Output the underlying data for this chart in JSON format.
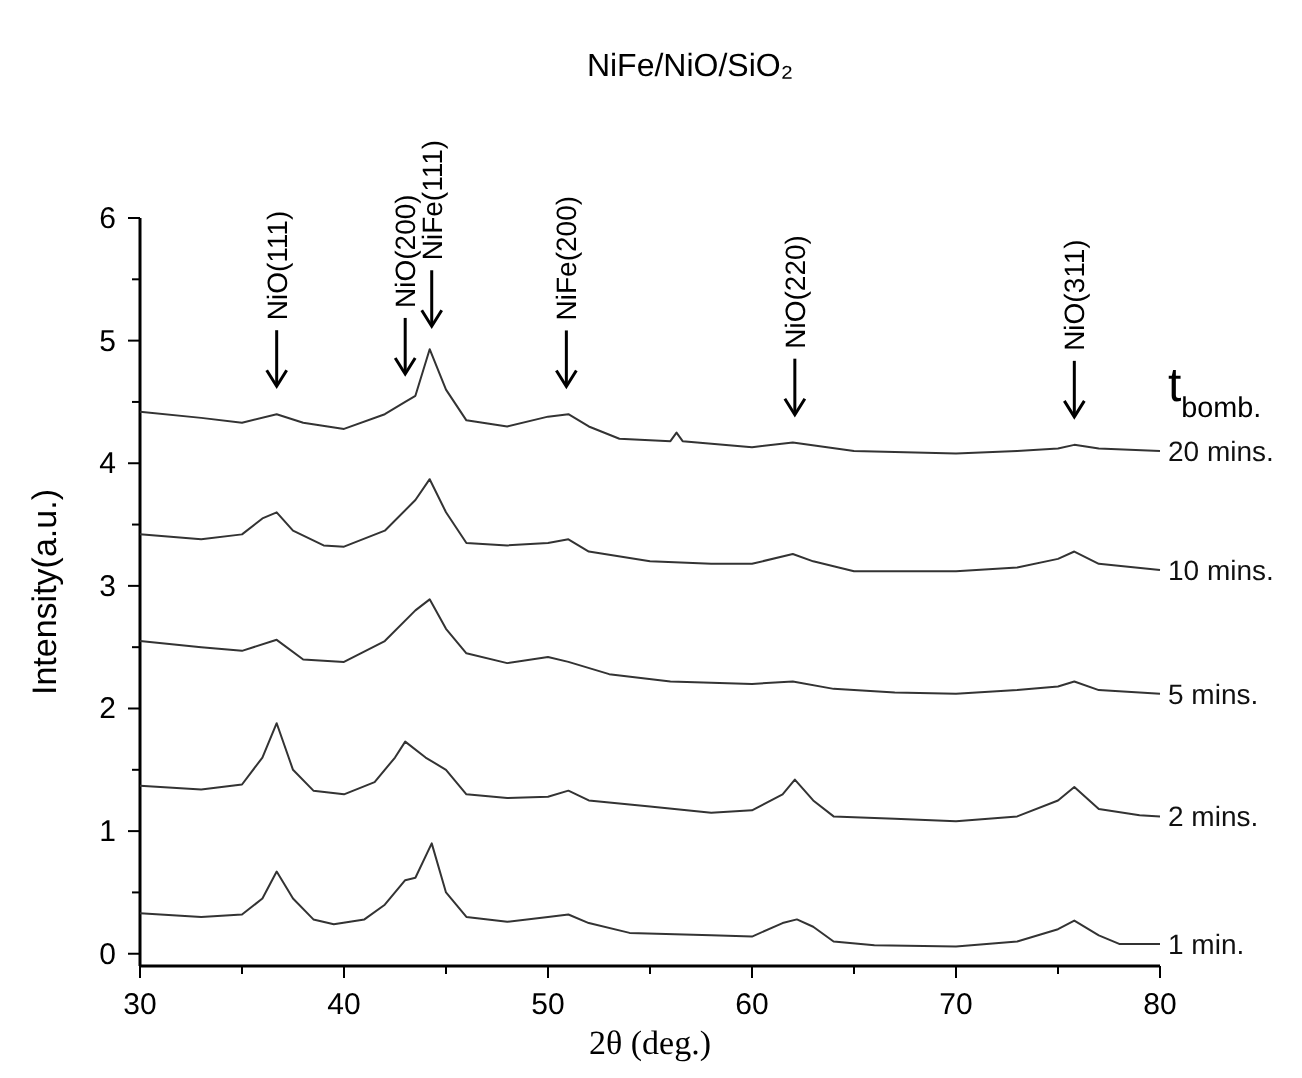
{
  "chart_data": {
    "type": "line",
    "title": "NiFe/NiO/SiO₂",
    "xlabel": "2θ (deg.)",
    "ylabel": "Intensity(a.u.)",
    "legend_title": "t$_{bomb.}$",
    "xlim": [
      30,
      80
    ],
    "xticks": [
      30,
      {
        "value": 35,
        "label": null
      },
      40,
      {
        "value": 45,
        "label": null
      },
      50,
      {
        "value": 55,
        "label": null
      },
      60,
      {
        "value": 65,
        "label": null
      },
      70,
      {
        "value": 75,
        "label": null
      },
      80
    ],
    "ylim": [
      -0.1,
      6
    ],
    "yticks": [
      0,
      {
        "value": 0.5,
        "label": null
      },
      1,
      {
        "value": 1.5,
        "label": null
      },
      2,
      {
        "value": 2.5,
        "label": null
      },
      3,
      {
        "value": 3.5,
        "label": null
      },
      4,
      {
        "value": 4.5,
        "label": null
      },
      5,
      {
        "value": 5.5,
        "label": null
      },
      6
    ],
    "grid": false,
    "marker": "none",
    "line_style": "solid",
    "series": [
      {
        "name": "20 mins.",
        "color": "#333333",
        "x": [
          30,
          33,
          35,
          36.7,
          38,
          40,
          42,
          43,
          43.5,
          44.2,
          45,
          46,
          48,
          50,
          51,
          52,
          53.5,
          56,
          56.3,
          56.6,
          60,
          62,
          65,
          70,
          73,
          75,
          75.8,
          77,
          80
        ],
        "values": [
          4.42,
          4.37,
          4.33,
          4.4,
          4.33,
          4.28,
          4.4,
          4.5,
          4.55,
          4.93,
          4.6,
          4.35,
          4.3,
          4.38,
          4.4,
          4.3,
          4.2,
          4.18,
          4.25,
          4.18,
          4.13,
          4.17,
          4.1,
          4.08,
          4.1,
          4.12,
          4.15,
          4.12,
          4.1
        ]
      },
      {
        "name": "10 mins.",
        "color": "#333333",
        "x": [
          30,
          33,
          35,
          36,
          36.7,
          37.5,
          39,
          40,
          42,
          43.5,
          44.2,
          45,
          46,
          48,
          50,
          51,
          52,
          55,
          58,
          60,
          62,
          63,
          65,
          70,
          73,
          75,
          75.8,
          77,
          80
        ],
        "values": [
          3.42,
          3.38,
          3.42,
          3.55,
          3.6,
          3.45,
          3.33,
          3.32,
          3.45,
          3.7,
          3.87,
          3.6,
          3.35,
          3.33,
          3.35,
          3.38,
          3.28,
          3.2,
          3.18,
          3.18,
          3.26,
          3.2,
          3.12,
          3.12,
          3.15,
          3.22,
          3.28,
          3.18,
          3.13
        ]
      },
      {
        "name": "5 mins.",
        "color": "#333333",
        "x": [
          30,
          33,
          35,
          36.7,
          38,
          40,
          42,
          43.5,
          44.2,
          45,
          46,
          48,
          50,
          51,
          53,
          56,
          60,
          62,
          64,
          67,
          70,
          73,
          75,
          75.8,
          77,
          80
        ],
        "values": [
          2.55,
          2.5,
          2.47,
          2.56,
          2.4,
          2.38,
          2.55,
          2.8,
          2.89,
          2.65,
          2.45,
          2.37,
          2.42,
          2.38,
          2.28,
          2.22,
          2.2,
          2.22,
          2.16,
          2.13,
          2.12,
          2.15,
          2.18,
          2.22,
          2.15,
          2.12
        ]
      },
      {
        "name": "2 mins.",
        "color": "#333333",
        "x": [
          30,
          33,
          35,
          36,
          36.7,
          37.5,
          38.5,
          40,
          41.5,
          42.5,
          43,
          44,
          45,
          46,
          48,
          50,
          51,
          52,
          55,
          58,
          60,
          61.5,
          62.1,
          63,
          64,
          67,
          70,
          73,
          75,
          75.8,
          77,
          79,
          80
        ],
        "values": [
          1.37,
          1.34,
          1.38,
          1.6,
          1.88,
          1.5,
          1.33,
          1.3,
          1.4,
          1.6,
          1.73,
          1.6,
          1.5,
          1.3,
          1.27,
          1.28,
          1.33,
          1.25,
          1.2,
          1.15,
          1.17,
          1.3,
          1.42,
          1.25,
          1.12,
          1.1,
          1.08,
          1.12,
          1.25,
          1.36,
          1.18,
          1.13,
          1.12
        ]
      },
      {
        "name": "1 min.",
        "color": "#333333",
        "x": [
          30,
          33,
          35,
          36,
          36.7,
          37.5,
          38.5,
          39.5,
          41,
          42,
          43,
          43.5,
          44.3,
          45,
          46,
          48,
          50,
          51,
          52,
          54,
          58,
          60,
          61.5,
          62.2,
          63,
          64,
          66,
          70,
          73,
          75,
          75.8,
          77,
          78,
          80
        ],
        "values": [
          0.33,
          0.3,
          0.32,
          0.45,
          0.67,
          0.45,
          0.28,
          0.24,
          0.28,
          0.4,
          0.6,
          0.62,
          0.9,
          0.5,
          0.3,
          0.26,
          0.3,
          0.32,
          0.25,
          0.17,
          0.15,
          0.14,
          0.25,
          0.28,
          0.22,
          0.1,
          0.07,
          0.06,
          0.1,
          0.2,
          0.27,
          0.15,
          0.08,
          0.08
        ]
      }
    ],
    "annotations": [
      {
        "text": "NiO(111)",
        "x": 36.7
      },
      {
        "text": "NiO(200)",
        "x": 43
      },
      {
        "text": "NiFe(111)",
        "x": 44.3
      },
      {
        "text": "NiFe(200)",
        "x": 50.9
      },
      {
        "text": "NiO(220)",
        "x": 62.1
      },
      {
        "text": "NiO(311)",
        "x": 75.8
      }
    ]
  }
}
